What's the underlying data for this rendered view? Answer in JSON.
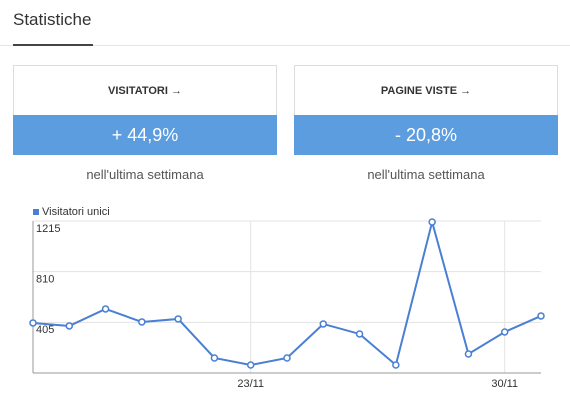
{
  "header": {
    "title": "Statistiche"
  },
  "cards": [
    {
      "label": "VISITATORI →",
      "value": "+ 44,9%",
      "caption": "nell'ultima settimana"
    },
    {
      "label": "PAGINE VISTE →",
      "value": "- 20,8%",
      "caption": "nell'ultima settimana"
    }
  ],
  "chart_data": {
    "type": "line",
    "categories": [
      null,
      null,
      null,
      null,
      null,
      null,
      "23/11",
      null,
      null,
      null,
      null,
      null,
      null,
      "30/11",
      null
    ],
    "series": [
      {
        "name": "Visitatori unici",
        "color": "#4a7fd4",
        "values": [
          400,
          376,
          512,
          408,
          432,
          120,
          64,
          120,
          392,
          312,
          64,
          1207,
          152,
          328,
          456
        ]
      }
    ],
    "ylim": [
      0,
      1215
    ],
    "yticks": [
      405,
      810,
      1215
    ],
    "grid": true
  }
}
